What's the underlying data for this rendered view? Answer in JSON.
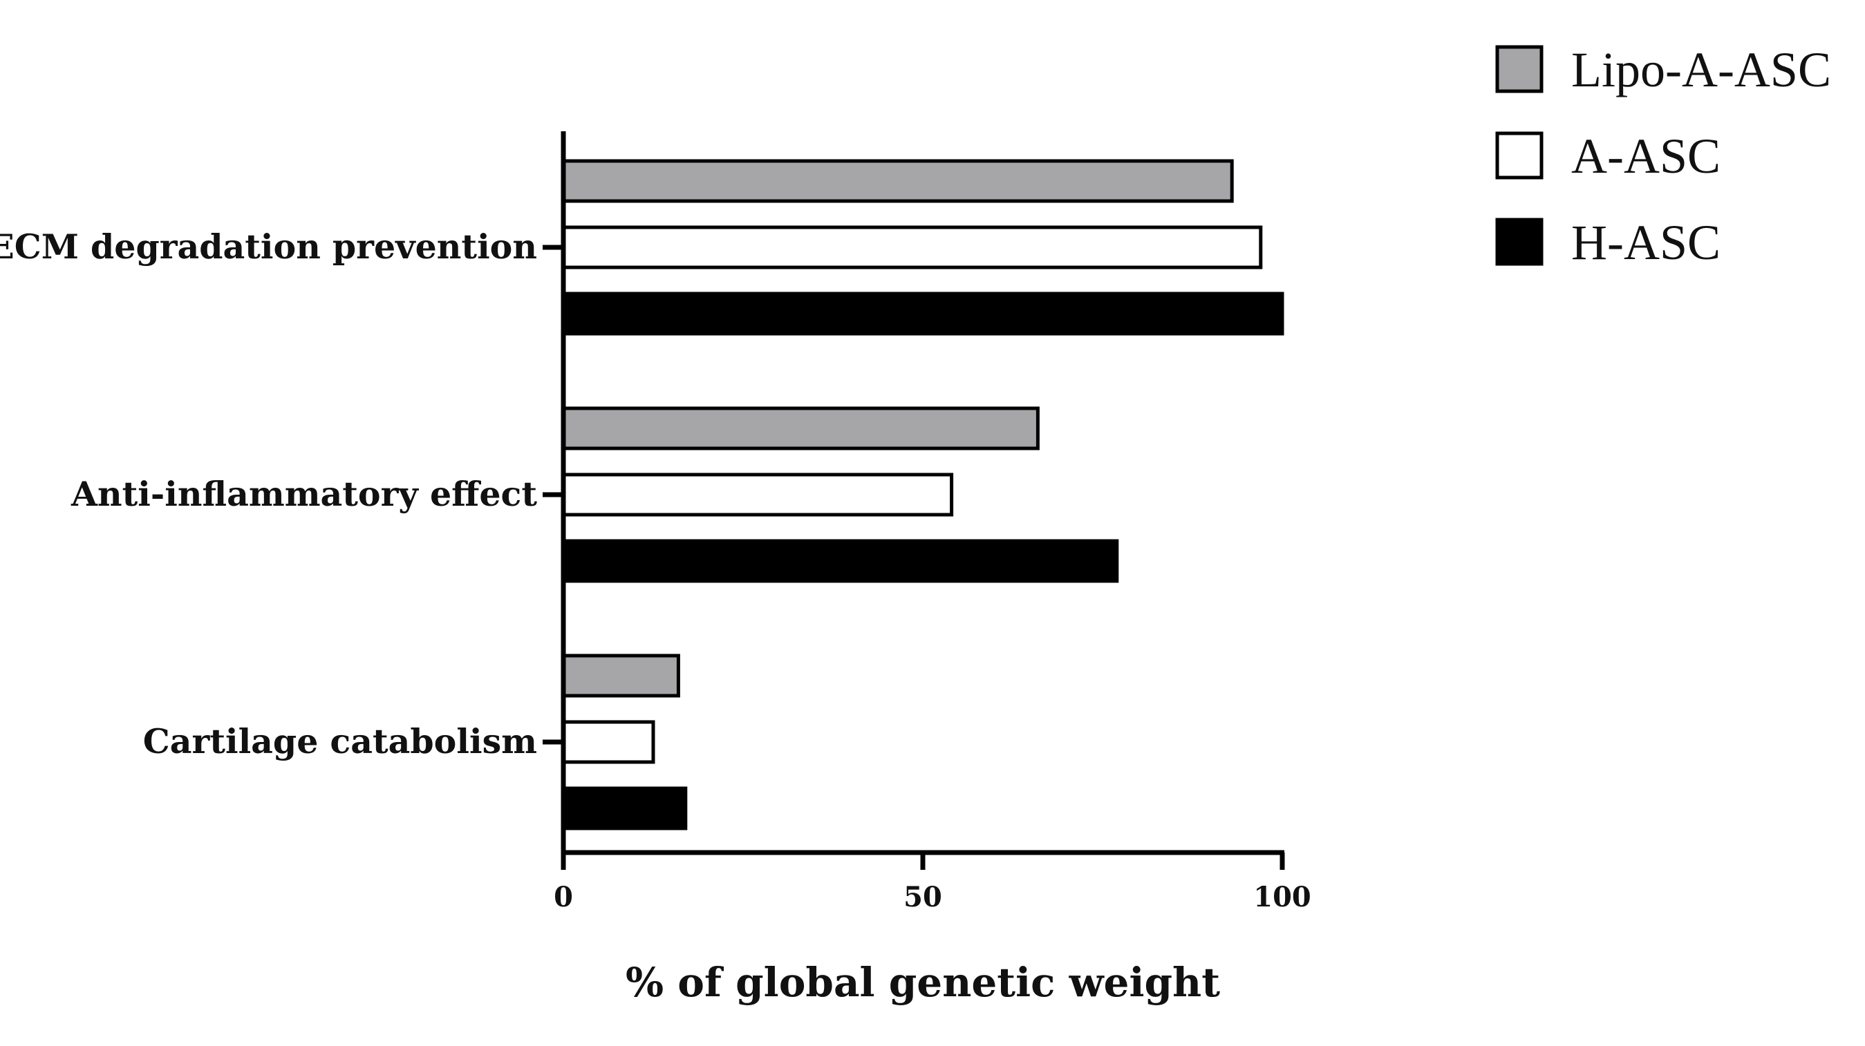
{
  "chart_data": {
    "type": "bar",
    "orientation": "horizontal",
    "categories": [
      "ECM degradation prevention",
      "Anti-inflammatory effect",
      "Cartilage catabolism"
    ],
    "series": [
      {
        "name": "Lipo-A-ASC",
        "color": "#a6a6a8",
        "values": [
          93,
          66,
          16
        ]
      },
      {
        "name": "A-ASC",
        "color": "#ffffff",
        "values": [
          97,
          54,
          12.5
        ]
      },
      {
        "name": "H-ASC",
        "color": "#000000",
        "values": [
          100,
          77,
          17
        ]
      }
    ],
    "xlabel": "% of global genetic weight",
    "ylabel": "",
    "xlim": [
      0,
      100
    ],
    "xticks": [
      0,
      50,
      100
    ],
    "grid": false,
    "legend": "top-right"
  }
}
